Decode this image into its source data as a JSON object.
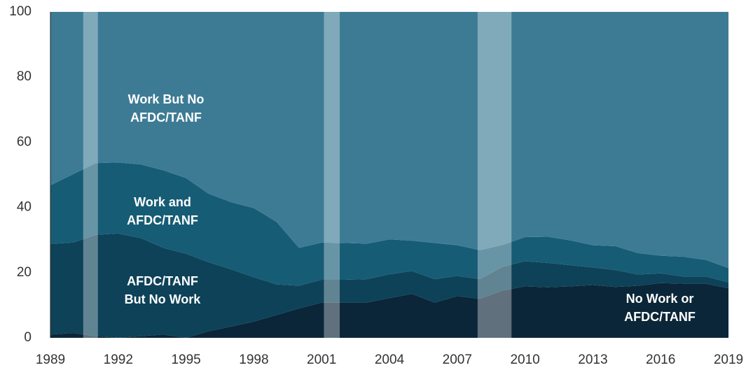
{
  "chart_data": {
    "type": "stacked-area",
    "x": [
      1989,
      1990,
      1991,
      1992,
      1993,
      1994,
      1995,
      1996,
      1997,
      1998,
      1999,
      2000,
      2001,
      2002,
      2003,
      2004,
      2005,
      2006,
      2007,
      2008,
      2009,
      2010,
      2011,
      2012,
      2013,
      2014,
      2015,
      2016,
      2017,
      2018,
      2019
    ],
    "series": [
      {
        "name": "No Work or AFDC/TANF",
        "color": "#0b2638",
        "values": [
          1,
          1.5,
          0.5,
          0,
          0.5,
          1,
          0,
          2,
          3.5,
          5,
          7,
          9,
          10.8,
          10.8,
          10.8,
          12.2,
          13.5,
          10.8,
          12.8,
          12,
          14.5,
          15.8,
          15.5,
          15.8,
          16.2,
          15.6,
          16,
          16.8,
          16.6,
          16.6,
          15.2
        ]
      },
      {
        "name": "AFDC/TANF But No Work",
        "color": "#0d4259",
        "values": [
          27.8,
          27.7,
          31.1,
          32,
          30.1,
          26.6,
          25.8,
          21.2,
          17.5,
          13.6,
          9.4,
          7,
          7,
          7,
          7.2,
          7.3,
          7,
          7.2,
          6.2,
          6,
          7.3,
          7.7,
          7.5,
          6.5,
          5.4,
          5.2,
          3.4,
          3,
          2.2,
          2.2,
          1.8
        ]
      },
      {
        "name": "Work and AFDC/TANF",
        "color": "#175c75",
        "values": [
          18,
          21,
          22,
          21.8,
          22.6,
          23.8,
          23.2,
          21,
          20.6,
          21.2,
          19.2,
          11.6,
          11.4,
          11.3,
          10.9,
          10.7,
          9.3,
          11.1,
          9.4,
          8.9,
          6.7,
          7.4,
          8,
          7.6,
          6.8,
          7.3,
          6.6,
          5.4,
          6.1,
          5.1,
          4.4
        ]
      },
      {
        "name": "Work But No AFDC/TANF",
        "color": "#3d7b95",
        "values": [
          53.2,
          49.8,
          46.4,
          46.2,
          46.8,
          48.6,
          51,
          55.8,
          58.4,
          60.2,
          64.4,
          72.4,
          70.8,
          70.9,
          71.1,
          69.8,
          70.2,
          70.9,
          71.6,
          73.1,
          71.5,
          69.1,
          69,
          70.1,
          71.6,
          71.9,
          74,
          74.8,
          75.1,
          76.1,
          78.6
        ]
      }
    ],
    "shaded_ranges": [
      [
        1990.45,
        1991.1
      ],
      [
        2001.1,
        2001.8
      ],
      [
        2007.9,
        2009.4
      ]
    ],
    "xlim": [
      1989,
      2019
    ],
    "xticks": [
      1989,
      1992,
      1995,
      1998,
      2001,
      2004,
      2007,
      2010,
      2013,
      2016,
      2019
    ],
    "ylim": [
      0,
      100
    ],
    "yticks": [
      0,
      20,
      40,
      60,
      80,
      100
    ]
  }
}
